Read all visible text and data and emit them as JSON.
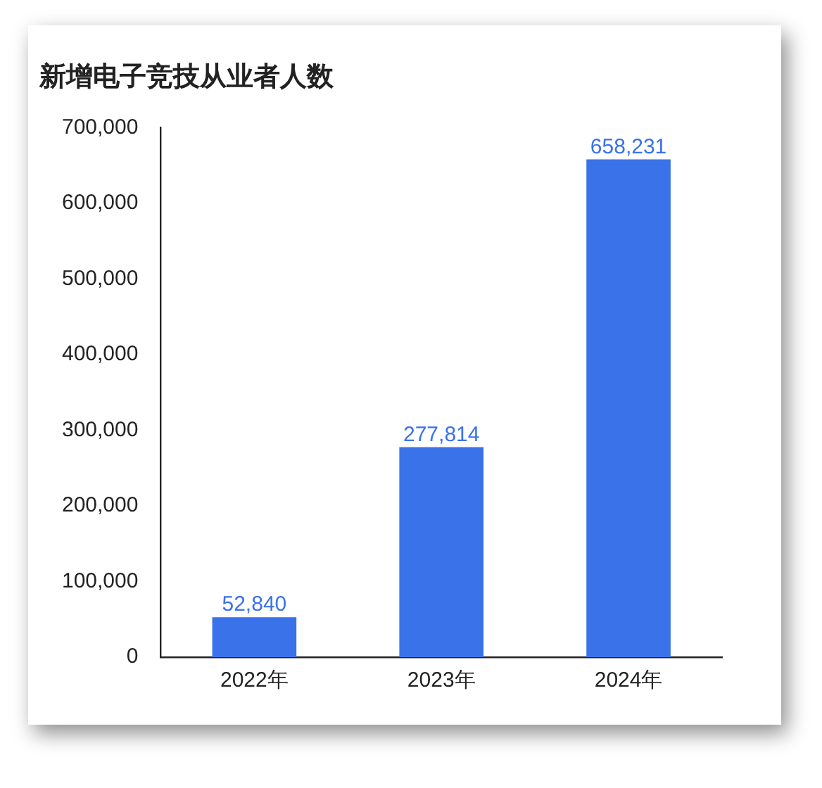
{
  "chart_data": {
    "type": "bar",
    "title": "新增电子竞技从业者人数",
    "categories": [
      "2022年",
      "2023年",
      "2024年"
    ],
    "values": [
      52840,
      277814,
      658231
    ],
    "value_labels": [
      "52,840",
      "277,814",
      "658,231"
    ],
    "color": "#3a72ea",
    "ylim": [
      0,
      700000
    ],
    "yticks": [
      0,
      {
        "value": 100000,
        "label": "100,000"
      },
      {
        "value": 200000,
        "label": "200,000"
      },
      {
        "value": 300000,
        "label": "300,000"
      },
      {
        "value": 400000,
        "label": "400,000"
      },
      {
        "value": 500000,
        "label": "500,000"
      },
      {
        "value": 600000,
        "label": "600,000"
      },
      {
        "value": 700000,
        "label": "700,000"
      }
    ],
    "grid": false,
    "legend": false
  }
}
